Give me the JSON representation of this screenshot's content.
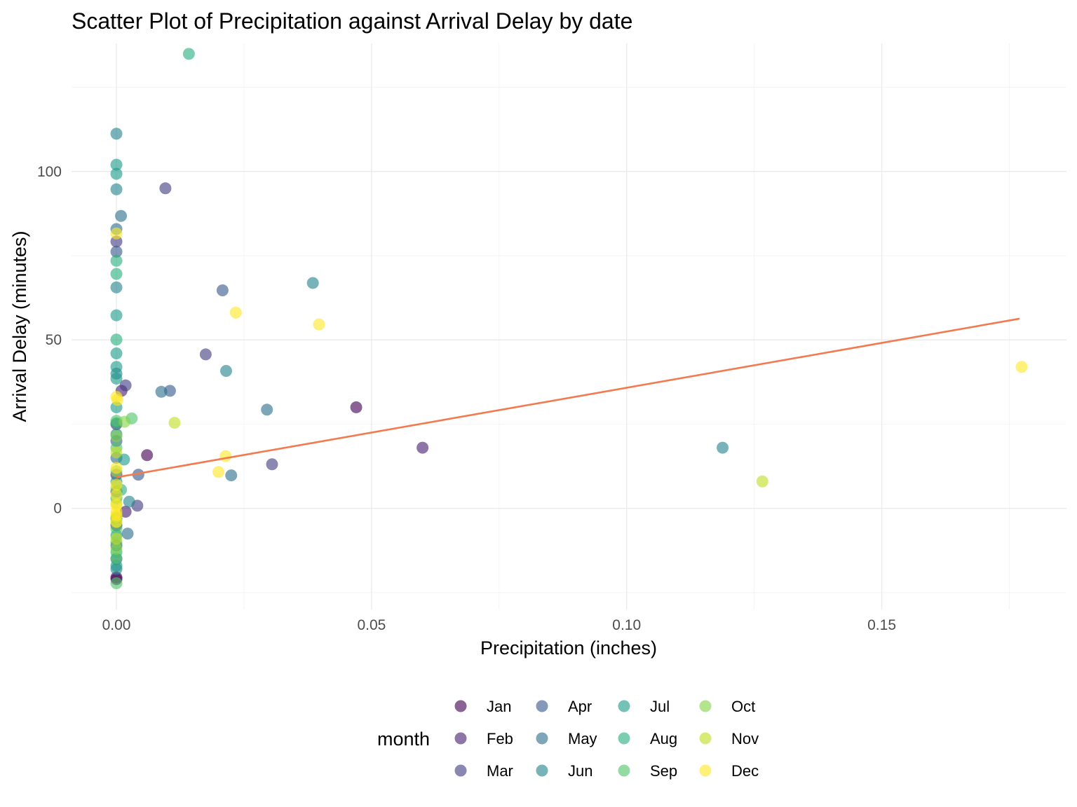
{
  "chart_data": {
    "type": "scatter",
    "title": "Scatter Plot of Precipitation against Arrival Delay by date",
    "xlabel": "Precipitation (inches)",
    "ylabel": "Arrival Delay (minutes)",
    "xlim": [
      -0.0088,
      0.1862
    ],
    "ylim": [
      -30,
      138
    ],
    "x_ticks": [
      0,
      0.05,
      0.1,
      0.15
    ],
    "x_tick_labels": [
      "0.00",
      "0.05",
      "0.10",
      "0.15"
    ],
    "x_minor": [
      0.025,
      0.075,
      0.125,
      0.175
    ],
    "y_ticks": [
      0,
      50,
      100
    ],
    "y_tick_labels": [
      "0",
      "50",
      "100"
    ],
    "y_minor": [
      -25,
      25,
      75,
      125
    ],
    "grid": true,
    "legend": {
      "title": "month",
      "placement": "bottom",
      "entries": [
        {
          "label": "Jan",
          "color": "#440154"
        },
        {
          "label": "Feb",
          "color": "#482173"
        },
        {
          "label": "Mar",
          "color": "#433E85"
        },
        {
          "label": "Apr",
          "color": "#38598C"
        },
        {
          "label": "May",
          "color": "#2D708E"
        },
        {
          "label": "Jun",
          "color": "#25858E"
        },
        {
          "label": "Jul",
          "color": "#1E9B8A"
        },
        {
          "label": "Aug",
          "color": "#2BB07F"
        },
        {
          "label": "Sep",
          "color": "#51C56A"
        },
        {
          "label": "Oct",
          "color": "#85D54A"
        },
        {
          "label": "Nov",
          "color": "#C2DF23"
        },
        {
          "label": "Dec",
          "color": "#FDE725"
        }
      ]
    },
    "trend_line": {
      "color": "#F4794E",
      "x": [
        0,
        0.177
      ],
      "y": [
        9.2,
        56.3
      ]
    },
    "series": [
      {
        "name": "Jan",
        "points": [
          [
            0,
            -21
          ],
          [
            0.006,
            15.8
          ],
          [
            0,
            -20.5
          ],
          [
            0.047,
            30
          ]
        ]
      },
      {
        "name": "Feb",
        "points": [
          [
            0.001,
            34.9
          ],
          [
            0.0018,
            -1
          ],
          [
            0.06,
            18
          ],
          [
            0,
            25
          ],
          [
            0,
            -5
          ],
          [
            0,
            10
          ]
        ]
      },
      {
        "name": "Mar",
        "points": [
          [
            0,
            79.2
          ],
          [
            0.0096,
            95
          ],
          [
            0.0018,
            36.5
          ],
          [
            0.0175,
            45.7
          ],
          [
            0.0041,
            0.8
          ],
          [
            0.0305,
            13.1
          ],
          [
            0,
            -11
          ],
          [
            0,
            5
          ]
        ]
      },
      {
        "name": "Apr",
        "points": [
          [
            0,
            76.2
          ],
          [
            0.0043,
            10
          ],
          [
            0.0208,
            64.7
          ],
          [
            0.0105,
            34.9
          ],
          [
            0,
            20
          ],
          [
            0,
            -15
          ]
        ]
      },
      {
        "name": "May",
        "points": [
          [
            0,
            82.9
          ],
          [
            0.0009,
            86.8
          ],
          [
            0.0088,
            34.6
          ],
          [
            0.0225,
            9.8
          ],
          [
            0.0295,
            29.3
          ],
          [
            0.0022,
            -7.5
          ],
          [
            0,
            15
          ],
          [
            0,
            -3
          ]
        ]
      },
      {
        "name": "Jun",
        "points": [
          [
            0,
            111.2
          ],
          [
            0,
            94.7
          ],
          [
            0,
            65.6
          ],
          [
            0.0025,
            2
          ],
          [
            0.0385,
            66.9
          ],
          [
            0.0215,
            40.8
          ],
          [
            0.1188,
            18
          ],
          [
            0,
            40
          ],
          [
            0,
            -18
          ],
          [
            0,
            22
          ]
        ]
      },
      {
        "name": "Jul",
        "points": [
          [
            0,
            102
          ],
          [
            0,
            99.3
          ],
          [
            0,
            57.3
          ],
          [
            0,
            46
          ],
          [
            0,
            42
          ],
          [
            0,
            38.5
          ],
          [
            0,
            -17
          ],
          [
            0,
            8
          ],
          [
            0,
            -8
          ],
          [
            0,
            30
          ],
          [
            0.0015,
            14.5
          ]
        ]
      },
      {
        "name": "Aug",
        "points": [
          [
            0.0142,
            134.9
          ],
          [
            0,
            73.5
          ],
          [
            0,
            69.6
          ],
          [
            0,
            50.1
          ],
          [
            0,
            25.3
          ],
          [
            0,
            -13
          ],
          [
            0,
            3
          ],
          [
            0.0009,
            5.5
          ]
        ]
      },
      {
        "name": "Sep",
        "points": [
          [
            0,
            -22.2
          ],
          [
            0,
            -14.8
          ],
          [
            0,
            26
          ],
          [
            0.003,
            26.7
          ],
          [
            0,
            -10
          ],
          [
            0,
            18
          ],
          [
            0,
            -6
          ]
        ]
      },
      {
        "name": "Oct",
        "points": [
          [
            0.0016,
            25.7
          ],
          [
            0,
            21.4
          ],
          [
            0,
            -12
          ],
          [
            0,
            6
          ],
          [
            0,
            -4
          ],
          [
            0,
            11
          ]
        ]
      },
      {
        "name": "Nov",
        "points": [
          [
            0.0114,
            25.4
          ],
          [
            0.1266,
            8
          ],
          [
            0,
            16.6
          ],
          [
            0,
            -9
          ],
          [
            0,
            1.5
          ],
          [
            0,
            -2.5
          ]
        ]
      },
      {
        "name": "Dec",
        "points": [
          [
            0,
            81.6
          ],
          [
            0.0002,
            32.2
          ],
          [
            0,
            33.1
          ],
          [
            0.0234,
            58.1
          ],
          [
            0.0397,
            54.6
          ],
          [
            0.02,
            10.8
          ],
          [
            0.0214,
            15.5
          ],
          [
            0.1774,
            42
          ],
          [
            0,
            12
          ],
          [
            0,
            7
          ],
          [
            0,
            4
          ],
          [
            0,
            1
          ],
          [
            0,
            -1
          ],
          [
            0,
            -2
          ],
          [
            0,
            -4
          ]
        ]
      }
    ]
  }
}
